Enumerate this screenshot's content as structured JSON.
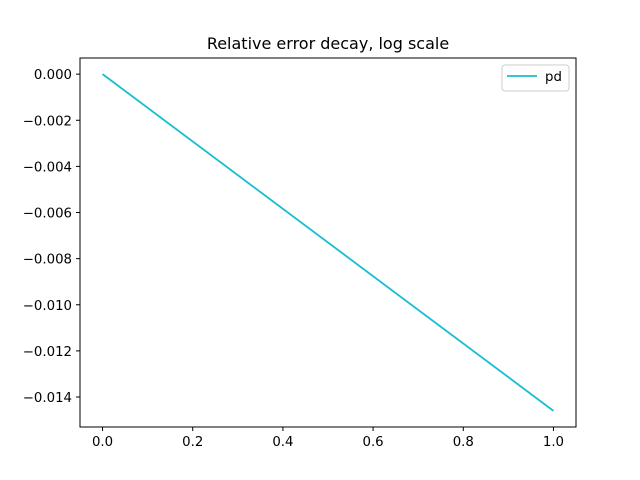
{
  "chart_data": {
    "type": "line",
    "title": "Relative error decay, log scale",
    "xlabel": "",
    "ylabel": "",
    "xlim": [
      -0.05,
      1.05
    ],
    "ylim": [
      -0.0153,
      0.0007
    ],
    "x_ticks": [
      0.0,
      0.2,
      0.4,
      0.6,
      0.8,
      1.0
    ],
    "x_tick_labels": [
      "0.0",
      "0.2",
      "0.4",
      "0.6",
      "0.8",
      "1.0"
    ],
    "y_ticks": [
      0.0,
      -0.002,
      -0.004,
      -0.006,
      -0.008,
      -0.01,
      -0.012,
      -0.014
    ],
    "y_tick_labels": [
      "0.000",
      "−0.002",
      "−0.004",
      "−0.006",
      "−0.008",
      "−0.010",
      "−0.012",
      "−0.014"
    ],
    "grid": false,
    "legend_position": "upper right",
    "series": [
      {
        "name": "pd",
        "color": "#17becf",
        "x": [
          0.0,
          1.0
        ],
        "y": [
          0.0,
          -0.0146
        ]
      }
    ]
  }
}
